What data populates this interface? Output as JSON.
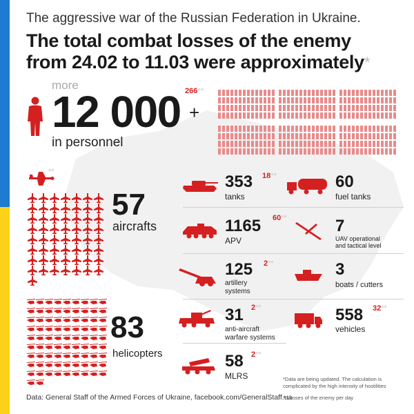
{
  "subtitle": "The aggressive war of the Russian Federation in Ukraine.",
  "headline": {
    "line1": "The total combat losses of the enemy",
    "line2": "from 24.02 to 11.03 were approximately",
    "star": "*"
  },
  "personnel": {
    "prefix": "more",
    "value": "12 000",
    "suffix": "+",
    "label": "in personnel",
    "daily": "266",
    "daily_mark": "**"
  },
  "aircraft": {
    "value": "57",
    "label": "aircrafts"
  },
  "helicopters": {
    "value": "83",
    "label": "helicopters"
  },
  "stats": {
    "tanks": {
      "value": "353",
      "label": "tanks",
      "daily": "18",
      "daily_mark": "**"
    },
    "apv": {
      "value": "1165",
      "label": "APV",
      "daily": "60",
      "daily_mark": "**"
    },
    "artillery": {
      "value": "125",
      "label1": "artillery",
      "label2": "systems",
      "daily": "2",
      "daily_mark": "**"
    },
    "aa": {
      "value": "31",
      "label1": "anti-aircraft",
      "label2": "warfare systems",
      "daily": "2",
      "daily_mark": "**"
    },
    "mlrs": {
      "value": "58",
      "label": "MLRS",
      "daily": "2",
      "daily_mark": "**"
    },
    "fuel": {
      "value": "60",
      "label": "fuel tanks"
    },
    "uav": {
      "value": "7",
      "label1": "UAV operational",
      "label2": "and tactical level"
    },
    "boats": {
      "value": "3",
      "label": "boats / cutters"
    },
    "vehicles": {
      "value": "558",
      "label": "vehicles",
      "daily": "32",
      "daily_mark": "**"
    }
  },
  "source": "Data: General Staff of the Armed Forces of Ukraine, facebook.com/GeneralStaff.ua",
  "notes": {
    "note1": "*Data are being updated. The calculation is complicated by the high intensity of hostilities",
    "note2": "**Losses of the enemy per day"
  },
  "colors": {
    "accent": "#d42020",
    "flag_blue": "#1f7ad1",
    "flag_yellow": "#fbd217"
  },
  "icons": {
    "person": "person-icon",
    "aircraft": "aircraft-icon",
    "helicopter": "helicopter-icon",
    "tank": "tank-icon",
    "apv": "apv-icon",
    "artillery": "artillery-icon",
    "aa": "anti-aircraft-icon",
    "mlrs": "mlrs-icon",
    "fuel": "fuel-tank-icon",
    "uav": "uav-icon",
    "boat": "boat-icon",
    "vehicle": "truck-icon"
  }
}
